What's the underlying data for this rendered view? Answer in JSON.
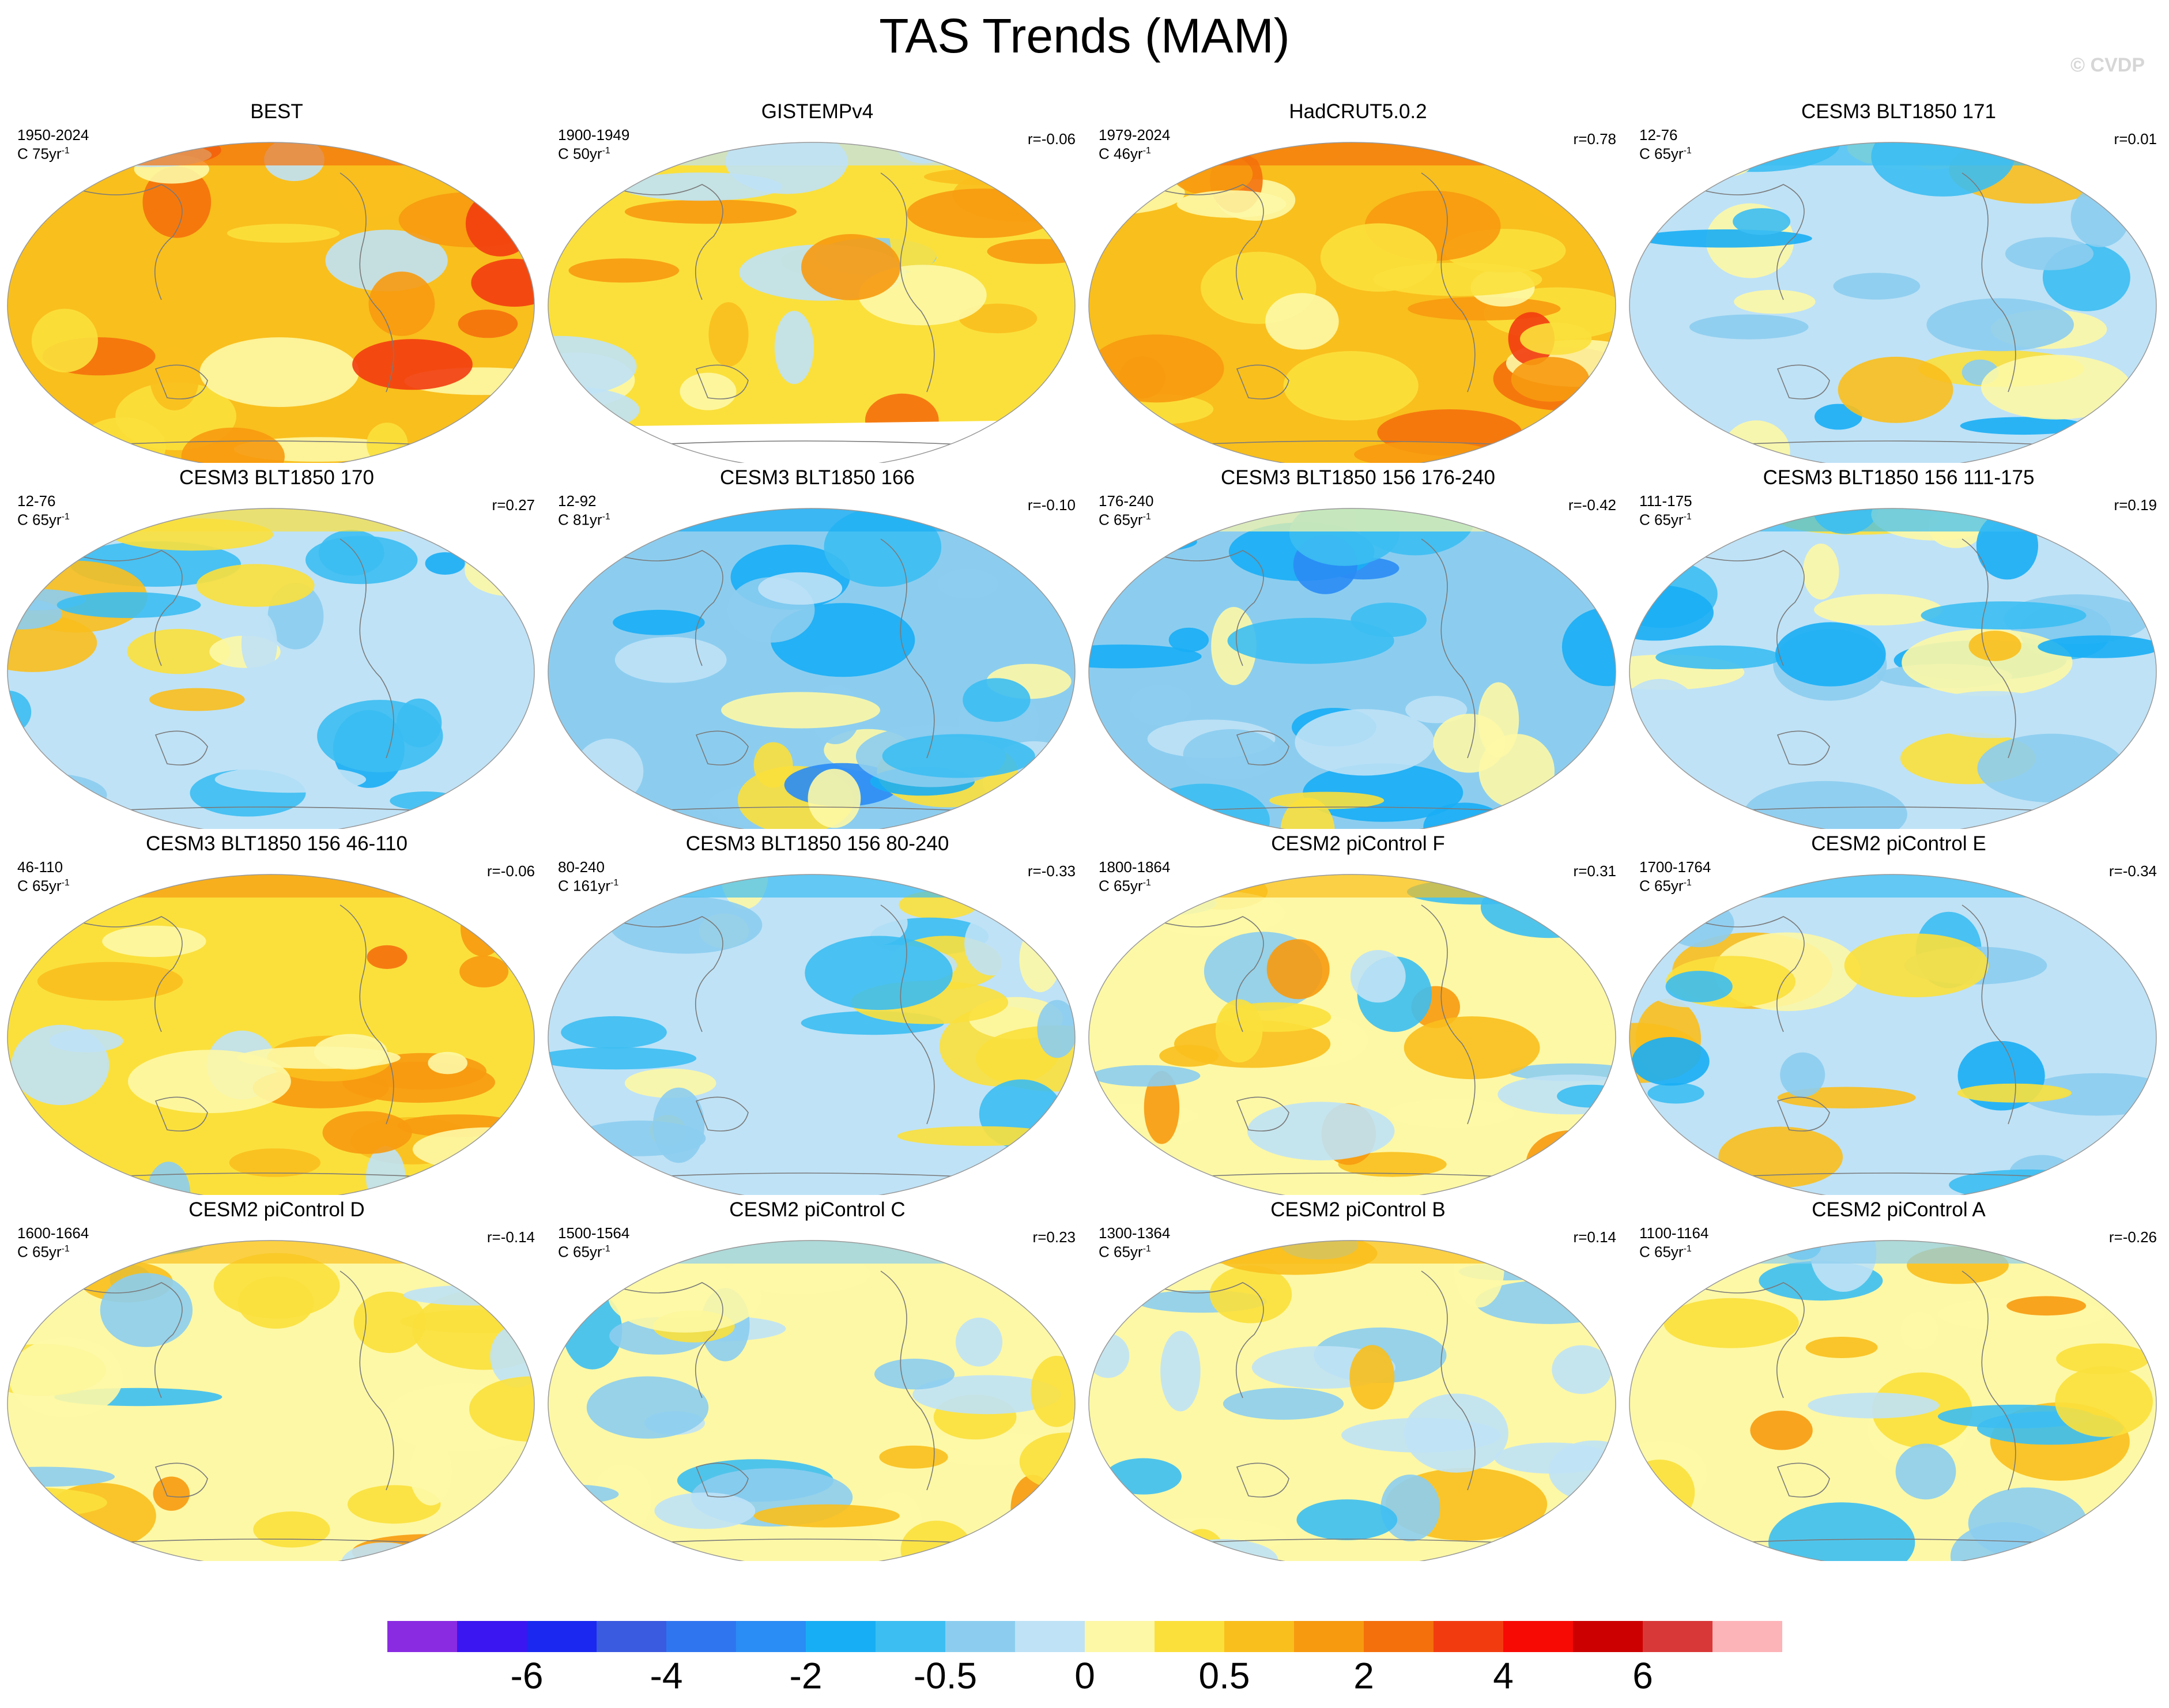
{
  "title": "TAS Trends (MAM)",
  "watermark": "© CVDP",
  "palette": [
    "#8a2be2",
    "#3b16f0",
    "#1a28f0",
    "#3a5ae0",
    "#2f75f0",
    "#2a8cf5",
    "#18aef5",
    "#3cbef2",
    "#8ccdef",
    "#bfe2f6",
    "#fdf8a6",
    "#fbe03c",
    "#f9bf1d",
    "#f79a10",
    "#f4700c",
    "#f23c10",
    "#f80a04",
    "#cc0000",
    "#d93838",
    "#fdb4b8"
  ],
  "colorbar": {
    "ticks": [
      "-6",
      "-4",
      "-2",
      "-0.5",
      "0",
      "0.5",
      "2",
      "4",
      "6"
    ],
    "tick_box_boundaries": [
      2,
      4,
      6,
      8,
      10,
      12,
      14,
      16,
      18
    ]
  },
  "panels": [
    {
      "name": "BEST",
      "period": "1950-2024",
      "units": "C 75yr",
      "units_exp": "-1",
      "r": "",
      "base": "#f9bf1d",
      "mask": false
    },
    {
      "name": "GISTEMPv4",
      "period": "1900-1949",
      "units": "C 50yr",
      "units_exp": "-1",
      "r": "r=-0.06",
      "base": "#fbe03c",
      "mask": true
    },
    {
      "name": "HadCRUT5.0.2",
      "period": "1979-2024",
      "units": "C 46yr",
      "units_exp": "-1",
      "r": "r=0.78",
      "base": "#f9bf1d",
      "mask": false
    },
    {
      "name": "CESM3 BLT1850 171",
      "period": "12-76",
      "units": "C 65yr",
      "units_exp": "-1",
      "r": "r=0.01",
      "base": "#bfe2f6",
      "mask": false
    },
    {
      "name": "CESM3 BLT1850 170",
      "period": "12-76",
      "units": "C 65yr",
      "units_exp": "-1",
      "r": "r=0.27",
      "base": "#bfe2f6",
      "mask": false
    },
    {
      "name": "CESM3 BLT1850 166",
      "period": "12-92",
      "units": "C 81yr",
      "units_exp": "-1",
      "r": "r=-0.10",
      "base": "#8ccdef",
      "mask": false
    },
    {
      "name": "CESM3 BLT1850 156 176-240",
      "period": "176-240",
      "units": "C 65yr",
      "units_exp": "-1",
      "r": "r=-0.42",
      "base": "#8ccdef",
      "mask": false
    },
    {
      "name": "CESM3 BLT1850 156 111-175",
      "period": "111-175",
      "units": "C 65yr",
      "units_exp": "-1",
      "r": "r=0.19",
      "base": "#bfe2f6",
      "mask": false
    },
    {
      "name": "CESM3 BLT1850 156 46-110",
      "period": "46-110",
      "units": "C 65yr",
      "units_exp": "-1",
      "r": "r=-0.06",
      "base": "#fbe03c",
      "mask": false
    },
    {
      "name": "CESM3 BLT1850 156 80-240",
      "period": "80-240",
      "units": "C 161yr",
      "units_exp": "-1",
      "r": "r=-0.33",
      "base": "#bfe2f6",
      "mask": false
    },
    {
      "name": "CESM2 piControl F",
      "period": "1800-1864",
      "units": "C 65yr",
      "units_exp": "-1",
      "r": "r=0.31",
      "base": "#fdf8a6",
      "mask": false
    },
    {
      "name": "CESM2 piControl E",
      "period": "1700-1764",
      "units": "C 65yr",
      "units_exp": "-1",
      "r": "r=-0.34",
      "base": "#bfe2f6",
      "mask": false
    },
    {
      "name": "CESM2 piControl D",
      "period": "1600-1664",
      "units": "C 65yr",
      "units_exp": "-1",
      "r": "r=-0.14",
      "base": "#fdf8a6",
      "mask": false
    },
    {
      "name": "CESM2 piControl C",
      "period": "1500-1564",
      "units": "C 65yr",
      "units_exp": "-1",
      "r": "r=0.23",
      "base": "#fdf8a6",
      "mask": false
    },
    {
      "name": "CESM2 piControl B",
      "period": "1300-1364",
      "units": "C 65yr",
      "units_exp": "-1",
      "r": "r=0.14",
      "base": "#fdf8a6",
      "mask": false
    },
    {
      "name": "CESM2 piControl A",
      "period": "1100-1164",
      "units": "C 65yr",
      "units_exp": "-1",
      "r": "r=-0.26",
      "base": "#fdf8a6",
      "mask": false
    }
  ]
}
